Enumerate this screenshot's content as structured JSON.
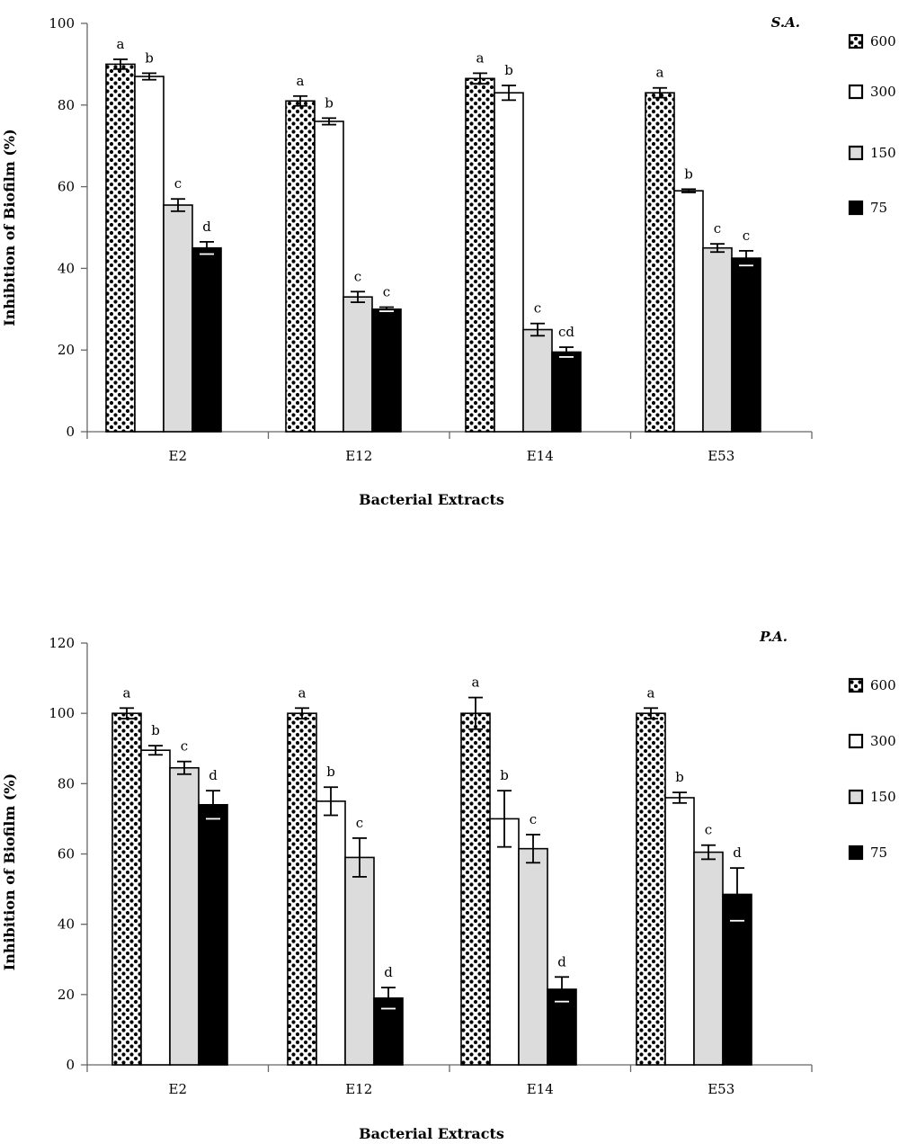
{
  "chart_data": [
    {
      "type": "bar",
      "title": "S.A.",
      "xlabel": "Bacterial Extracts",
      "ylabel": "Inhibition of Biofilm (%)",
      "ylim": [
        0,
        100
      ],
      "yticks": [
        0,
        20,
        40,
        60,
        80,
        100
      ],
      "categories": [
        "E2",
        "E12",
        "E14",
        "E53"
      ],
      "legend_position": "right",
      "series": [
        {
          "name": "600",
          "pattern": "dots",
          "values": [
            90,
            81,
            86.5,
            83
          ],
          "errors": [
            1.2,
            1.2,
            1.3,
            1.2
          ],
          "labels": [
            "a",
            "a",
            "a",
            "a"
          ]
        },
        {
          "name": "300",
          "pattern": "white",
          "values": [
            87,
            76,
            83,
            59
          ],
          "errors": [
            0.8,
            0.8,
            1.8,
            0.4
          ],
          "labels": [
            "b",
            "b",
            "b",
            "b"
          ]
        },
        {
          "name": "150",
          "pattern": "lightgray",
          "values": [
            55.5,
            33,
            25,
            45
          ],
          "errors": [
            1.5,
            1.3,
            1.5,
            1.0
          ],
          "labels": [
            "c",
            "c",
            "c",
            "c"
          ]
        },
        {
          "name": "75",
          "pattern": "black",
          "values": [
            45,
            30,
            19.5,
            42.5
          ],
          "errors": [
            1.5,
            0.5,
            1.2,
            1.8
          ],
          "labels": [
            "d",
            "c",
            "cd",
            "c"
          ]
        }
      ]
    },
    {
      "type": "bar",
      "title": "P.A.",
      "xlabel": "Bacterial Extracts",
      "ylabel": "Inhibition of Biofilm (%)",
      "ylim": [
        0,
        120
      ],
      "yticks": [
        0,
        20,
        40,
        60,
        80,
        100,
        120
      ],
      "categories": [
        "E2",
        "E12",
        "E14",
        "E53"
      ],
      "legend_position": "right",
      "series": [
        {
          "name": "600",
          "pattern": "dots",
          "values": [
            100,
            100,
            100,
            100
          ],
          "errors": [
            1.5,
            1.5,
            4.5,
            1.5
          ],
          "labels": [
            "a",
            "a",
            "a",
            "a"
          ]
        },
        {
          "name": "300",
          "pattern": "white",
          "values": [
            89.5,
            75,
            70,
            76
          ],
          "errors": [
            1.3,
            4.0,
            8.0,
            1.5
          ],
          "labels": [
            "b",
            "b",
            "b",
            "b"
          ]
        },
        {
          "name": "150",
          "pattern": "lightgray",
          "values": [
            84.5,
            59,
            61.5,
            60.5
          ],
          "errors": [
            1.8,
            5.5,
            4.0,
            2.0
          ],
          "labels": [
            "c",
            "c",
            "c",
            "c"
          ]
        },
        {
          "name": "75",
          "pattern": "black",
          "values": [
            74,
            19,
            21.5,
            48.5
          ],
          "errors": [
            4.0,
            3.0,
            3.5,
            7.5
          ],
          "labels": [
            "d",
            "d",
            "d",
            "d"
          ]
        }
      ]
    }
  ]
}
